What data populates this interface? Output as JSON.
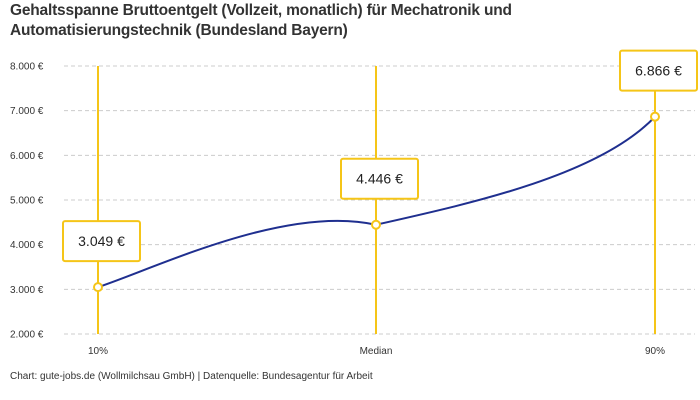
{
  "title": "Gehaltsspanne Bruttoentgelt (Vollzeit, monatlich) für Mechatronik und Automatisierungstechnik (Bundesland Bayern)",
  "footer": "Chart: gute-jobs.de (Wollmilchsau GmbH) | Datenquelle: Bundesagentur für Arbeit",
  "colors": {
    "line": "#1f2f8f",
    "accent": "#f5c518",
    "grid": "#cccccc"
  },
  "chart_data": {
    "type": "line",
    "categories": [
      "10%",
      "Median",
      "90%"
    ],
    "values": [
      3049,
      4446,
      6866
    ],
    "data_labels": [
      "3.049 €",
      "4.446 €",
      "6.866 €"
    ],
    "ylim": [
      2000,
      8000
    ],
    "yticks": [
      2000,
      3000,
      4000,
      5000,
      6000,
      7000,
      8000
    ],
    "ytick_labels": [
      "2.000 €",
      "3.000 €",
      "4.000 €",
      "5.000 €",
      "6.000 €",
      "7.000 €",
      "8.000 €"
    ],
    "grid": true,
    "xlabel": "",
    "ylabel": ""
  }
}
